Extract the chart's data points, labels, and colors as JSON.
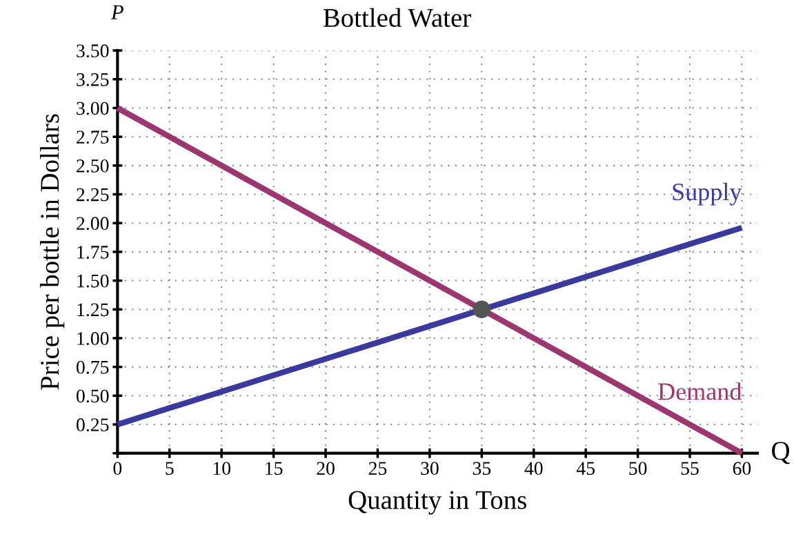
{
  "chart_data": {
    "type": "line",
    "title": "Bottled Water",
    "xlabel": "Quantity in Tons",
    "ylabel": "Price per bottle in Dollars",
    "annotations": [
      "P",
      "Q"
    ],
    "xlim": [
      0,
      61.5
    ],
    "ylim": [
      0,
      3.5
    ],
    "xticks": [
      0,
      5,
      10,
      15,
      20,
      25,
      30,
      35,
      40,
      45,
      50,
      55,
      60
    ],
    "yticks": [
      {
        "value": 0,
        "label": null
      },
      0.25,
      {
        "value": 0.5,
        "label": "0.50"
      },
      0.75,
      {
        "value": 1,
        "label": "1.00"
      },
      1.25,
      {
        "value": 1.5,
        "label": "1.50"
      },
      1.75,
      {
        "value": 2,
        "label": "2.00"
      },
      2.25,
      {
        "value": 2.5,
        "label": "2.50"
      },
      2.75,
      {
        "value": 3,
        "label": "3.00"
      },
      3.25,
      {
        "value": 3.5,
        "label": "3.50"
      }
    ],
    "grid": true,
    "line_style": "solid",
    "marker": "none",
    "series": [
      {
        "name": "Supply",
        "color": "#3a3a9e",
        "x": [
          0,
          60
        ],
        "values": [
          0.25,
          1.96
        ]
      },
      {
        "name": "Demand",
        "color": "#9b3670",
        "x": [
          0,
          60
        ],
        "values": [
          3.0,
          0.0
        ]
      },
      {
        "type": "scatter",
        "color": "#555555",
        "marker": "circle",
        "x": [
          35
        ],
        "values": [
          1.25
        ]
      }
    ]
  }
}
